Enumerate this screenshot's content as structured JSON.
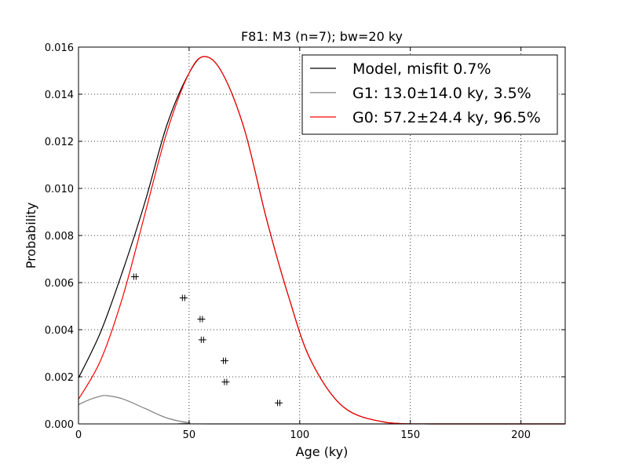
{
  "chart_data": {
    "type": "line",
    "title": "F81: M3 (n=7); bw=20 ky",
    "xlabel": "Age (ky)",
    "ylabel": "Probability",
    "xlim": [
      0,
      220
    ],
    "ylim": [
      0,
      0.016
    ],
    "xticks": [
      0,
      50,
      100,
      150,
      200
    ],
    "xtick_labels": [
      "0",
      "50",
      "100",
      "150",
      "200"
    ],
    "yticks": [
      0,
      0.002,
      0.004,
      0.006,
      0.008,
      0.01,
      0.012,
      0.014,
      0.016
    ],
    "ytick_labels": [
      "0.000",
      "0.002",
      "0.004",
      "0.006",
      "0.008",
      "0.010",
      "0.012",
      "0.014",
      "0.016"
    ],
    "grid": true,
    "legend_position": "upper-right",
    "series": [
      {
        "name": "Model, misfit 0.7%",
        "color": "#000000",
        "x": [
          0,
          10,
          20,
          30,
          40,
          50,
          57,
          65,
          75,
          85,
          95,
          105,
          120,
          140,
          160,
          220
        ],
        "y": [
          0.00195,
          0.0039,
          0.0065,
          0.0094,
          0.0127,
          0.0149,
          0.0156,
          0.0149,
          0.0125,
          0.0087,
          0.0054,
          0.0027,
          0.0007,
          5e-05,
          0.0,
          0.0
        ]
      },
      {
        "name": "G1: 13.0±14.0 ky, 3.5%",
        "color": "#808080",
        "x": [
          0,
          5,
          10,
          13,
          20,
          30,
          40,
          50,
          60,
          220
        ],
        "y": [
          0.00082,
          0.00103,
          0.00118,
          0.0012,
          0.00106,
          0.00066,
          0.00025,
          5e-05,
          0.0,
          0.0
        ]
      },
      {
        "name": "G0: 57.2±24.4 ky, 96.5%",
        "color": "#ff0000",
        "x": [
          0,
          10,
          20,
          30,
          40,
          50,
          57,
          65,
          75,
          85,
          95,
          105,
          120,
          140,
          160,
          220
        ],
        "y": [
          0.00105,
          0.0027,
          0.0054,
          0.0089,
          0.0124,
          0.0149,
          0.0156,
          0.0149,
          0.0125,
          0.0087,
          0.0054,
          0.0027,
          0.0007,
          5e-05,
          0.0,
          0.0
        ]
      }
    ],
    "samples": [
      {
        "age": 25.5,
        "p": 0.00625
      },
      {
        "age": 47.5,
        "p": 0.00535
      },
      {
        "age": 55.5,
        "p": 0.00445
      },
      {
        "age": 56.0,
        "p": 0.00357
      },
      {
        "age": 66.0,
        "p": 0.00268
      },
      {
        "age": 66.5,
        "p": 0.00178
      },
      {
        "age": 90.5,
        "p": 0.00089
      }
    ]
  }
}
